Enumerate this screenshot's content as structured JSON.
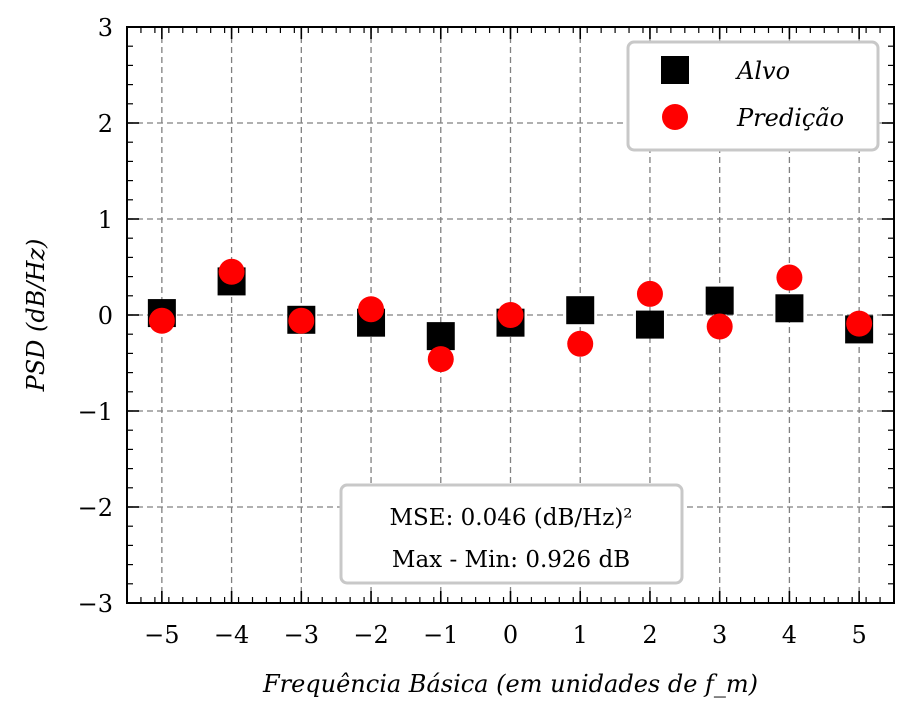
{
  "chart_data": {
    "type": "scatter",
    "xlabel": "Frequência Básica (em unidades de f_m)",
    "ylabel": "PSD (dB/Hz)",
    "xlim": [
      -5.5,
      5.5
    ],
    "ylim": [
      -3,
      3
    ],
    "x_ticks": [
      -5,
      -4,
      -3,
      -2,
      -1,
      0,
      1,
      2,
      3,
      4,
      5
    ],
    "x_tick_labels": [
      "−5",
      "−4",
      "−3",
      "−2",
      "−1",
      "0",
      "1",
      "2",
      "3",
      "4",
      "5"
    ],
    "y_ticks": [
      -3,
      -2,
      -1,
      0,
      1,
      2,
      3
    ],
    "y_tick_labels": [
      "−3",
      "−2",
      "−1",
      "0",
      "1",
      "2",
      "3"
    ],
    "grid": true,
    "legend_position": "top-right",
    "series": [
      {
        "name": "Alvo",
        "marker": "square",
        "color": "#000000",
        "x": [
          -5,
          -4,
          -3,
          -2,
          -1,
          0,
          1,
          2,
          3,
          4,
          5
        ],
        "y": [
          0.02,
          0.35,
          -0.05,
          -0.08,
          -0.22,
          -0.08,
          0.05,
          -0.1,
          0.15,
          0.07,
          -0.15
        ]
      },
      {
        "name": "Predição",
        "marker": "circle",
        "color": "#ff0000",
        "x": [
          -5,
          -4,
          -3,
          -2,
          -1,
          0,
          1,
          2,
          3,
          4,
          5
        ],
        "y": [
          -0.06,
          0.45,
          -0.06,
          0.06,
          -0.46,
          0.0,
          -0.3,
          0.22,
          -0.12,
          0.39,
          -0.09
        ]
      }
    ],
    "annotation": {
      "line1": "MSE: 0.046 (dB/Hz)²",
      "line2": "Max - Min: 0.926 dB"
    }
  }
}
